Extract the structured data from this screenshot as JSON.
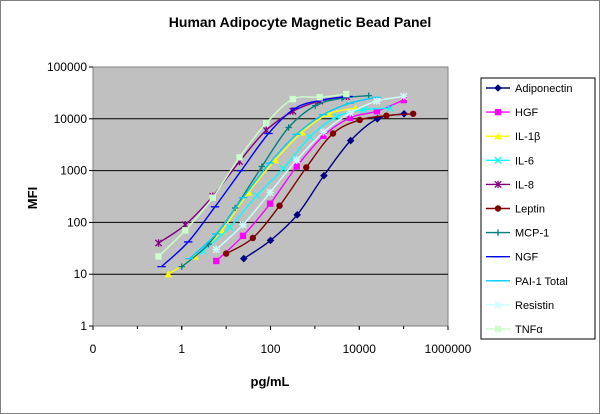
{
  "chart_data": {
    "type": "line",
    "title": "Human Adipocyte Magnetic Bead Panel",
    "xlabel": "pg/mL",
    "ylabel": "MFI",
    "xscale": "log",
    "yscale": "log",
    "xlim": [
      0.01,
      1000000
    ],
    "ylim": [
      1,
      100000
    ],
    "x_tick_labels": [
      "0",
      "1",
      "100",
      "10000",
      "1000000"
    ],
    "y_tick_labels": [
      "1",
      "10",
      "100",
      "1000",
      "10000",
      "100000"
    ],
    "grid": "horizontal",
    "plot_background": "#c0c0c0",
    "legend_position": "right",
    "series": [
      {
        "name": "Adiponectin",
        "color": "#000080",
        "marker": "diamond",
        "x": [
          25,
          100,
          400,
          1600,
          6400,
          25600,
          102400
        ],
        "y": [
          20,
          45,
          140,
          800,
          3800,
          10000,
          12500
        ]
      },
      {
        "name": "HGF",
        "color": "#ff00ff",
        "marker": "square",
        "x": [
          6,
          24,
          98,
          390,
          1560,
          6250,
          25000,
          100000
        ],
        "y": [
          18,
          55,
          230,
          1200,
          4700,
          10500,
          14000,
          23000
        ]
      },
      {
        "name": "IL-1β",
        "color": "#ffff00",
        "marker": "triangle",
        "x": [
          0.5,
          2,
          8,
          32,
          128,
          512,
          2048,
          8192
        ],
        "y": [
          10,
          22,
          70,
          380,
          1600,
          5500,
          12500,
          16000
        ]
      },
      {
        "name": "IL-6",
        "color": "#00ffff",
        "marker": "x",
        "x": [
          3,
          12,
          49,
          195,
          780,
          3125,
          12500,
          50000
        ],
        "y": [
          28,
          80,
          330,
          1100,
          4500,
          11000,
          15000,
          16000
        ]
      },
      {
        "name": "IL-8",
        "color": "#800080",
        "marker": "star",
        "x": [
          0.3,
          1.2,
          5,
          20,
          80,
          320,
          1280,
          5120
        ],
        "y": [
          40,
          90,
          320,
          1500,
          6000,
          14000,
          22000,
          27000
        ]
      },
      {
        "name": "Leptin",
        "color": "#800000",
        "marker": "circle",
        "x": [
          10,
          40,
          160,
          640,
          2560,
          10240,
          40960,
          163840
        ],
        "y": [
          25,
          50,
          210,
          1150,
          5200,
          9500,
          11500,
          12500
        ]
      },
      {
        "name": "MCP-1",
        "color": "#008080",
        "marker": "plus",
        "x": [
          1,
          4,
          16,
          64,
          256,
          1024,
          4096,
          16384
        ],
        "y": [
          14,
          38,
          190,
          1200,
          6800,
          18000,
          25000,
          28000
        ]
      },
      {
        "name": "NGF",
        "color": "#0000ff",
        "marker": "dash",
        "x": [
          0.35,
          1.4,
          5.6,
          22,
          90,
          360,
          1440,
          5760
        ],
        "y": [
          14,
          42,
          200,
          1000,
          5200,
          16000,
          23000,
          27000
        ]
      },
      {
        "name": "PAI-1 Total",
        "color": "#00ccff",
        "marker": "dash",
        "x": [
          1.5,
          6,
          24,
          96,
          384,
          1536,
          6144,
          24576
        ],
        "y": [
          20,
          60,
          300,
          1400,
          5000,
          12000,
          20000,
          26000
        ]
      },
      {
        "name": "Resistin",
        "color": "#ccffff",
        "marker": "asterisk",
        "x": [
          6,
          24,
          98,
          390,
          1560,
          6250,
          25000,
          100000
        ],
        "y": [
          30,
          90,
          380,
          1600,
          5500,
          13000,
          22000,
          27000
        ]
      },
      {
        "name": "TNFα",
        "color": "#ccffcc",
        "marker": "square",
        "x": [
          0.3,
          1.2,
          5,
          20,
          80,
          320,
          1280,
          5120
        ],
        "y": [
          22,
          70,
          300,
          1800,
          8200,
          24000,
          26000,
          30000
        ]
      }
    ]
  }
}
